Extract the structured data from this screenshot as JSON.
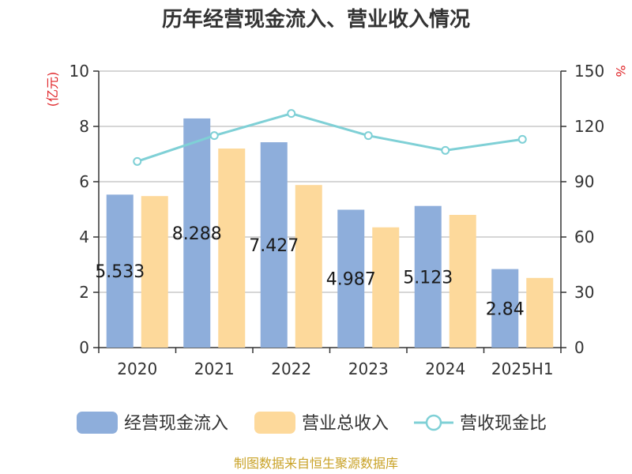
{
  "chart_data": {
    "type": "bar",
    "title": "历年经营现金流入、营业收入情况",
    "categories": [
      "2020",
      "2021",
      "2022",
      "2023",
      "2024",
      "2025H1"
    ],
    "y_left": {
      "unit": "(亿元)",
      "range": [
        0,
        10
      ],
      "ticks": [
        0,
        2,
        4,
        6,
        8,
        10
      ]
    },
    "y_right": {
      "unit": "%",
      "range": [
        0,
        150
      ],
      "ticks": [
        0,
        30,
        60,
        90,
        120,
        150
      ]
    },
    "series": [
      {
        "name": "经营现金流入",
        "type": "bar",
        "axis": "left",
        "color": "#8eaedb",
        "values": [
          5.533,
          8.288,
          7.427,
          4.987,
          5.123,
          2.84
        ],
        "labels": [
          "5.533",
          "8.288",
          "7.427",
          "4.987",
          "5.123",
          "2.84"
        ]
      },
      {
        "name": "营业总收入",
        "type": "bar",
        "axis": "left",
        "color": "#fdd99b",
        "values": [
          5.48,
          7.2,
          5.88,
          4.35,
          4.8,
          2.52
        ]
      },
      {
        "name": "营收现金比",
        "type": "line",
        "axis": "right",
        "color": "#7fd0d6",
        "values": [
          101,
          115,
          127,
          115,
          107,
          113
        ]
      }
    ],
    "grid": true,
    "legend": "bottom",
    "source": "制图数据来自恒生聚源数据库"
  }
}
